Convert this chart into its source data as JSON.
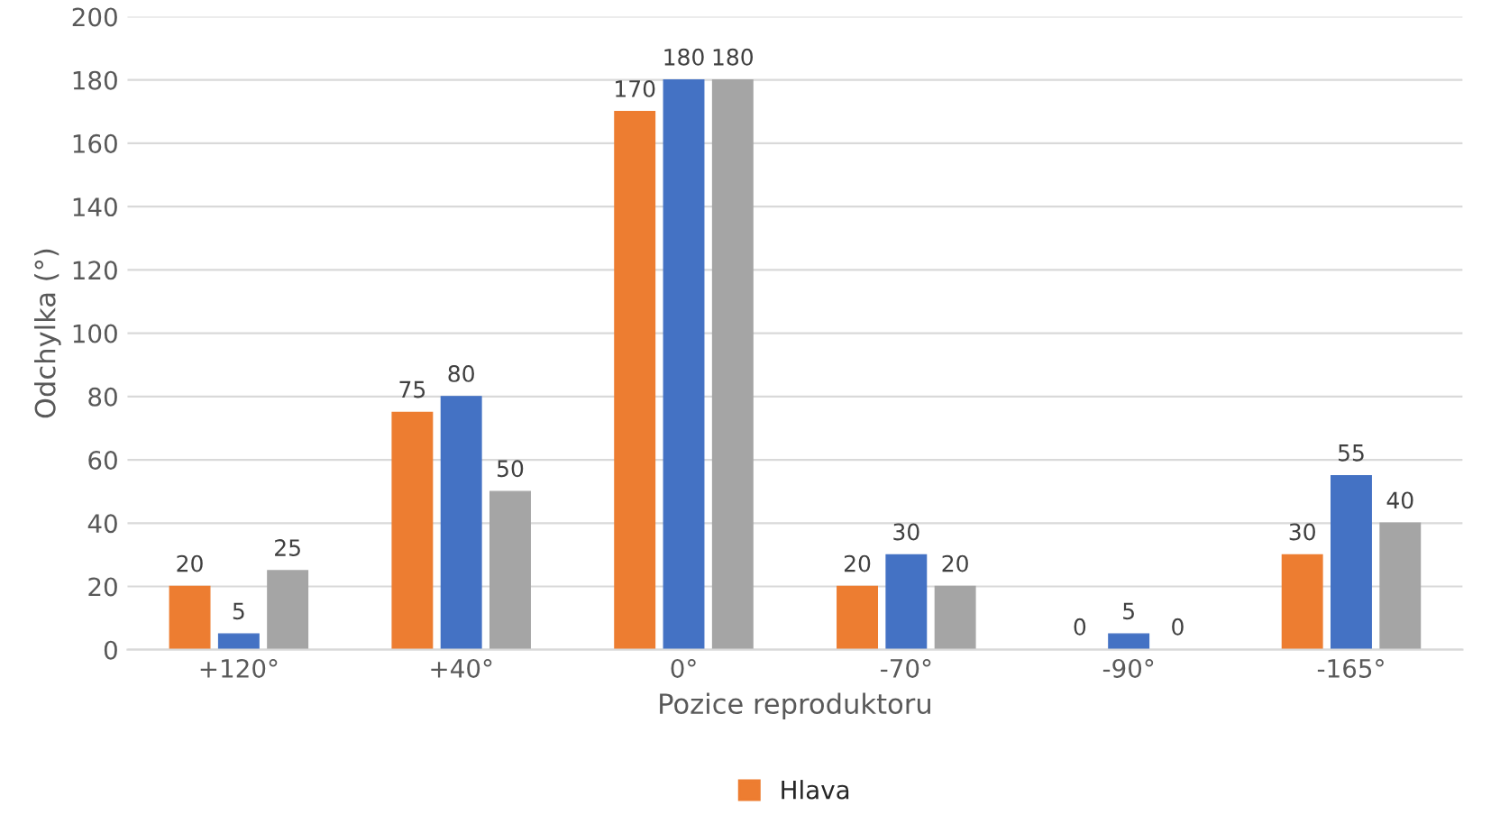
{
  "chart_data": {
    "type": "bar",
    "xlabel": "Pozice reproduktoru",
    "ylabel": "Odchylka (°)",
    "categories": [
      "+120°",
      "+40°",
      "0°",
      "-70°",
      "-90°",
      "-165°"
    ],
    "series": [
      {
        "name": "Hlava",
        "color": "#ed7d31",
        "values": [
          20,
          75,
          170,
          20,
          0,
          30
        ]
      },
      {
        "color": "#4472c4",
        "values": [
          5,
          80,
          180,
          30,
          5,
          55
        ]
      },
      {
        "color": "#a5a5a5",
        "values": [
          25,
          50,
          180,
          20,
          0,
          40
        ]
      }
    ],
    "ylim": [
      0,
      200
    ],
    "yticks": [
      0,
      20,
      40,
      60,
      80,
      100,
      120,
      140,
      160,
      180,
      200
    ],
    "grid": "y",
    "legend": "bottom",
    "data_labels": true
  }
}
